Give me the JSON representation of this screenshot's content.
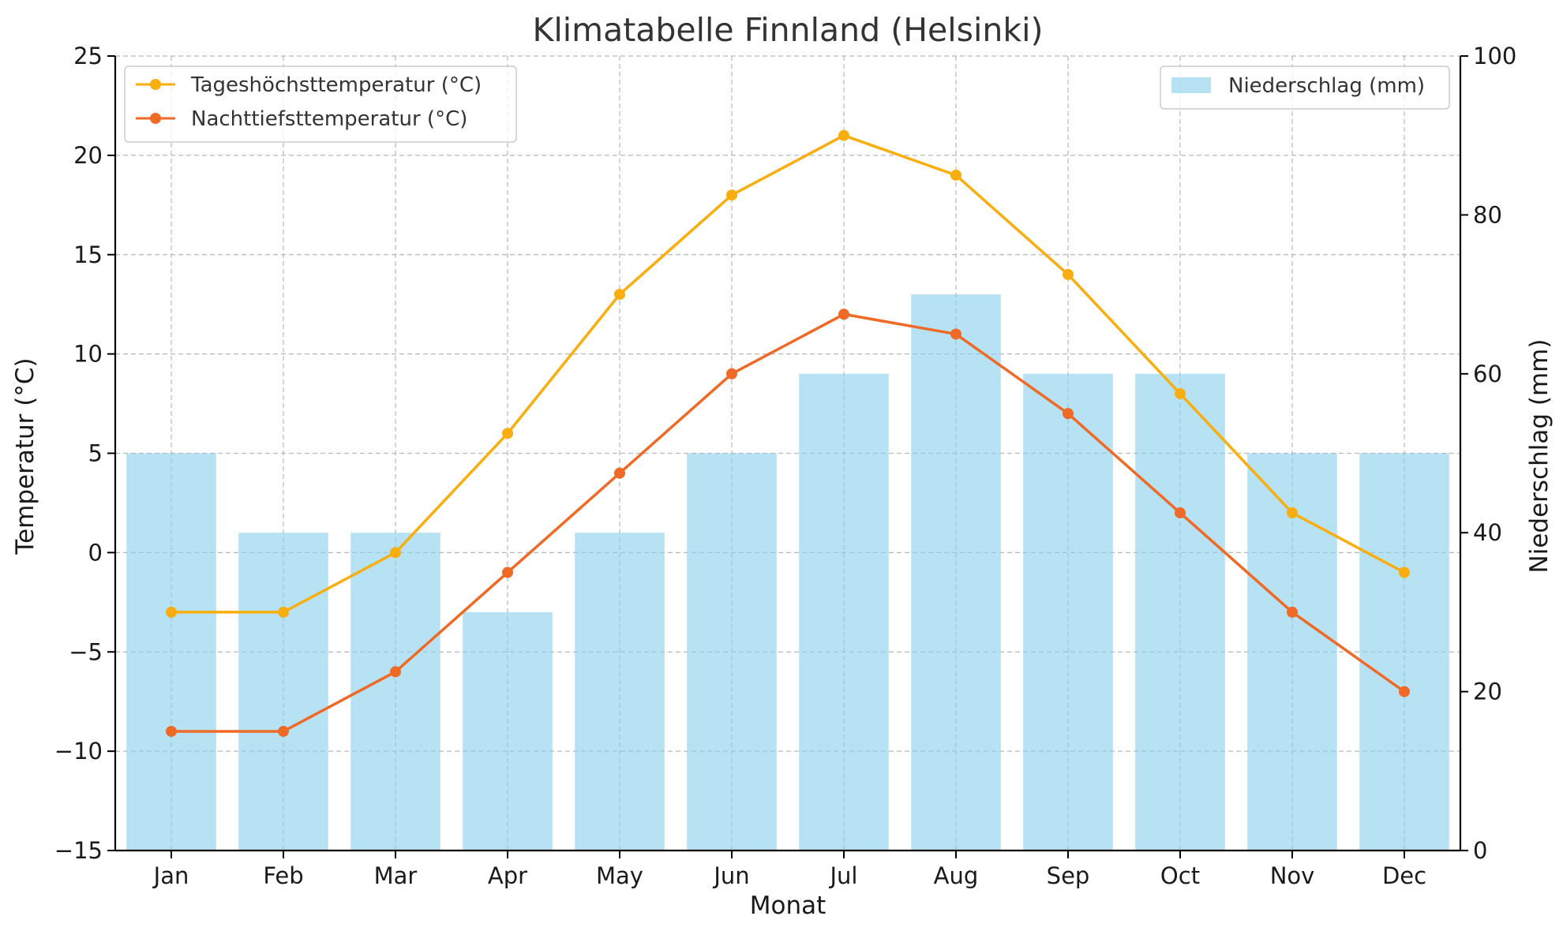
{
  "chart_data": {
    "type": "bar+line",
    "title": "Klimatabelle Finnland (Helsinki)",
    "xlabel": "Monat",
    "ylabel_left": "Temperatur (°C)",
    "ylabel_right": "Niederschlag (mm)",
    "categories": [
      "Jan",
      "Feb",
      "Mar",
      "Apr",
      "May",
      "Jun",
      "Jul",
      "Aug",
      "Sep",
      "Oct",
      "Nov",
      "Dec"
    ],
    "ylim_left": [
      -15,
      25
    ],
    "yticks_left": [
      -15,
      -10,
      -5,
      0,
      5,
      10,
      15,
      20,
      25
    ],
    "ylim_right": [
      0,
      100
    ],
    "yticks_right": [
      0,
      20,
      40,
      60,
      80,
      100
    ],
    "grid": true,
    "series": [
      {
        "name": "Tageshöchsttemperatur (°C)",
        "type": "line",
        "axis": "left",
        "color": "#F9AE0F",
        "values": [
          -3,
          -3,
          0,
          6,
          13,
          18,
          21,
          19,
          14,
          8,
          2,
          -1
        ]
      },
      {
        "name": "Nachttiefsttemperatur (°C)",
        "type": "line",
        "axis": "left",
        "color": "#EF6A26",
        "values": [
          -9,
          -9,
          -6,
          -1,
          4,
          9,
          12,
          11,
          7,
          2,
          -3,
          -7
        ]
      },
      {
        "name": "Niederschlag (mm)",
        "type": "bar",
        "axis": "right",
        "color": "#87CEEB",
        "values": [
          50,
          40,
          40,
          30,
          40,
          50,
          60,
          70,
          60,
          60,
          50,
          50
        ]
      }
    ],
    "legend_lines_position": "top-left",
    "legend_bars_position": "top-right"
  }
}
